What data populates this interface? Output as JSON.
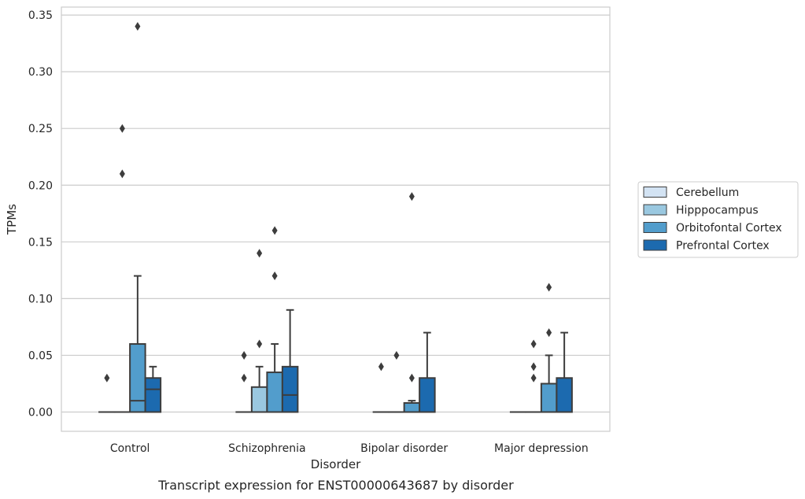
{
  "chart_data": {
    "type": "box",
    "xlabel": "Disorder",
    "ylabel": "TPMs",
    "caption": "Transcript expression for ENST00000643687 by disorder",
    "categories": [
      "Control",
      "Schizophrenia",
      "Bipolar disorder",
      "Major depression"
    ],
    "ylim": [
      -0.017,
      0.357
    ],
    "yticks": [
      0.0,
      0.05,
      0.1,
      0.15,
      0.2,
      0.25,
      0.3,
      0.35
    ],
    "ytick_labels": [
      "0.00",
      "0.05",
      "0.10",
      "0.15",
      "0.20",
      "0.25",
      "0.30",
      "0.35"
    ],
    "grid": "horizontal",
    "legend_position": "right",
    "series": [
      {
        "name": "Cerebellum",
        "color": "#d3e3f3",
        "boxes": [
          {
            "q1": 0,
            "median": 0,
            "q3": 0,
            "whisker_low": 0,
            "whisker_high": 0,
            "outliers": [
              0.03
            ]
          },
          {
            "q1": 0,
            "median": 0,
            "q3": 0,
            "whisker_low": 0,
            "whisker_high": 0,
            "outliers": [
              0.03,
              0.05
            ]
          },
          {
            "q1": 0,
            "median": 0,
            "q3": 0,
            "whisker_low": 0,
            "whisker_high": 0,
            "outliers": [
              0.04
            ]
          },
          {
            "q1": 0,
            "median": 0,
            "q3": 0,
            "whisker_low": 0,
            "whisker_high": 0,
            "outliers": []
          }
        ]
      },
      {
        "name": "Hipppocampus",
        "color": "#9ac8e0",
        "boxes": [
          {
            "q1": 0,
            "median": 0,
            "q3": 0,
            "whisker_low": 0,
            "whisker_high": 0,
            "outliers": [
              0.21,
              0.25
            ]
          },
          {
            "q1": 0,
            "median": 0,
            "q3": 0.022,
            "whisker_low": 0,
            "whisker_high": 0.04,
            "outliers": [
              0.06,
              0.14
            ]
          },
          {
            "q1": 0,
            "median": 0,
            "q3": 0,
            "whisker_low": 0,
            "whisker_high": 0,
            "outliers": [
              0.05
            ]
          },
          {
            "q1": 0,
            "median": 0,
            "q3": 0,
            "whisker_low": 0,
            "whisker_high": 0,
            "outliers": [
              0.03,
              0.04,
              0.06
            ]
          }
        ]
      },
      {
        "name": "Orbitofontal Cortex",
        "color": "#529dcc",
        "boxes": [
          {
            "q1": 0,
            "median": 0.01,
            "q3": 0.06,
            "whisker_low": 0,
            "whisker_high": 0.12,
            "outliers": [
              0.34
            ]
          },
          {
            "q1": 0,
            "median": 0,
            "q3": 0.035,
            "whisker_low": 0,
            "whisker_high": 0.06,
            "outliers": [
              0.12,
              0.16
            ]
          },
          {
            "q1": 0,
            "median": 0,
            "q3": 0.008,
            "whisker_low": 0,
            "whisker_high": 0.01,
            "outliers": [
              0.03,
              0.19
            ]
          },
          {
            "q1": 0,
            "median": 0,
            "q3": 0.025,
            "whisker_low": 0,
            "whisker_high": 0.05,
            "outliers": [
              0.07,
              0.11
            ]
          }
        ]
      },
      {
        "name": "Prefrontal Cortex",
        "color": "#1c6aaf",
        "boxes": [
          {
            "q1": 0,
            "median": 0.02,
            "q3": 0.03,
            "whisker_low": 0,
            "whisker_high": 0.04,
            "outliers": []
          },
          {
            "q1": 0,
            "median": 0.015,
            "q3": 0.04,
            "whisker_low": 0,
            "whisker_high": 0.09,
            "outliers": []
          },
          {
            "q1": 0,
            "median": 0,
            "q3": 0.03,
            "whisker_low": 0,
            "whisker_high": 0.07,
            "outliers": []
          },
          {
            "q1": 0,
            "median": 0,
            "q3": 0.03,
            "whisker_low": 0,
            "whisker_high": 0.07,
            "outliers": []
          }
        ]
      }
    ]
  }
}
